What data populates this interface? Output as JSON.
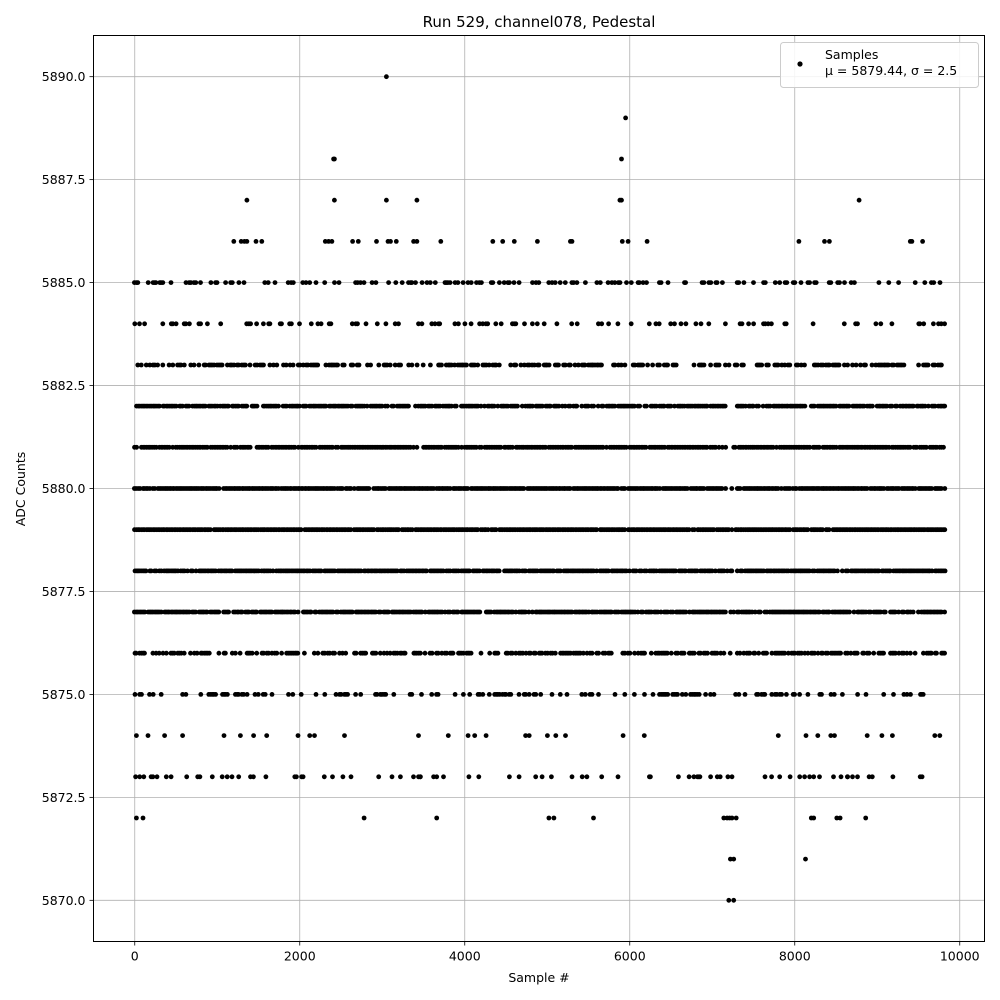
{
  "chart_data": {
    "type": "scatter",
    "title": "Run 529, channel078, Pedestal",
    "xlabel": "Sample #",
    "ylabel": "ADC Counts",
    "xlim": [
      -500,
      10300
    ],
    "ylim": [
      5869.0,
      5891.0
    ],
    "xticks": [
      0,
      2000,
      4000,
      6000,
      8000,
      10000
    ],
    "xtick_labels": [
      "0",
      "2000",
      "4000",
      "6000",
      "8000",
      "10000"
    ],
    "yticks": [
      5870.0,
      5872.5,
      5875.0,
      5877.5,
      5880.0,
      5882.5,
      5885.0,
      5887.5,
      5890.0
    ],
    "ytick_labels": [
      "5870.0",
      "5872.5",
      "5875.0",
      "5877.5",
      "5880.0",
      "5882.5",
      "5885.0",
      "5887.5",
      "5890.0"
    ],
    "grid": true,
    "legend_position": "top-right",
    "series": [
      {
        "name": "Samples",
        "stats_label": "μ = 5879.44, σ = 2.5",
        "color": "#000000",
        "x_start": 0,
        "x_end": 9820,
        "x_step": 20,
        "gaps": [
          {
            "from": 7160,
            "to": 7300,
            "value": 5873
          },
          {
            "from": 7160,
            "to": 7300,
            "value": 5872
          }
        ],
        "levels": [
          {
            "value": 5879,
            "density": 0.95
          },
          {
            "value": 5880,
            "density": 0.92
          },
          {
            "value": 5881,
            "density": 0.9
          },
          {
            "value": 5878,
            "density": 0.88
          },
          {
            "value": 5882,
            "density": 0.8
          },
          {
            "value": 5877,
            "density": 0.82
          },
          {
            "value": 5876,
            "density": 0.55
          },
          {
            "value": 5883,
            "density": 0.5
          },
          {
            "value": 5875,
            "density": 0.28
          },
          {
            "value": 5884,
            "density": 0.22
          },
          {
            "value": 5885,
            "density": 0.24
          },
          {
            "value": 5874,
            "density": 0.09
          },
          {
            "value": 5873,
            "density": 0.06
          }
        ],
        "outliers": [
          [
            3050,
            5890
          ],
          [
            5950,
            5889
          ],
          [
            2410,
            5888
          ],
          [
            2420,
            5888
          ],
          [
            5900,
            5888
          ],
          [
            1360,
            5887
          ],
          [
            2420,
            5887
          ],
          [
            3050,
            5887
          ],
          [
            3420,
            5887
          ],
          [
            5880,
            5887
          ],
          [
            5900,
            5887
          ],
          [
            8780,
            5887
          ],
          [
            1200,
            5886
          ],
          [
            1290,
            5886
          ],
          [
            1330,
            5886
          ],
          [
            1360,
            5886
          ],
          [
            1470,
            5886
          ],
          [
            1540,
            5886
          ],
          [
            2310,
            5886
          ],
          [
            2350,
            5886
          ],
          [
            2390,
            5886
          ],
          [
            2640,
            5886
          ],
          [
            2710,
            5886
          ],
          [
            2930,
            5886
          ],
          [
            3070,
            5886
          ],
          [
            3100,
            5886
          ],
          [
            3170,
            5886
          ],
          [
            3380,
            5886
          ],
          [
            3420,
            5886
          ],
          [
            3710,
            5886
          ],
          [
            4340,
            5886
          ],
          [
            4460,
            5886
          ],
          [
            4600,
            5886
          ],
          [
            4880,
            5886
          ],
          [
            5280,
            5886
          ],
          [
            5300,
            5886
          ],
          [
            5910,
            5886
          ],
          [
            5980,
            5886
          ],
          [
            6210,
            5886
          ],
          [
            8050,
            5886
          ],
          [
            8360,
            5886
          ],
          [
            8420,
            5886
          ],
          [
            9400,
            5886
          ],
          [
            9420,
            5886
          ],
          [
            9550,
            5886
          ],
          [
            20,
            5872
          ],
          [
            100,
            5872
          ],
          [
            2780,
            5872
          ],
          [
            3660,
            5872
          ],
          [
            5020,
            5872
          ],
          [
            5080,
            5872
          ],
          [
            5560,
            5872
          ],
          [
            7140,
            5872
          ],
          [
            7180,
            5872
          ],
          [
            7210,
            5872
          ],
          [
            7240,
            5872
          ],
          [
            7290,
            5872
          ],
          [
            8200,
            5872
          ],
          [
            8230,
            5872
          ],
          [
            8510,
            5872
          ],
          [
            8550,
            5872
          ],
          [
            8860,
            5872
          ],
          [
            7220,
            5871
          ],
          [
            7260,
            5871
          ],
          [
            8130,
            5871
          ],
          [
            7200,
            5870
          ],
          [
            7260,
            5870
          ],
          [
            10,
            5873
          ],
          [
            60,
            5873
          ],
          [
            110,
            5873
          ],
          [
            220,
            5873
          ],
          [
            270,
            5873
          ],
          [
            440,
            5873
          ],
          [
            630,
            5873
          ],
          [
            790,
            5873
          ],
          [
            940,
            5873
          ],
          [
            1060,
            5873
          ],
          [
            1120,
            5873
          ],
          [
            1260,
            5873
          ],
          [
            1590,
            5873
          ],
          [
            1940,
            5873
          ],
          [
            1960,
            5873
          ],
          [
            3220,
            5873
          ],
          [
            3460,
            5873
          ],
          [
            3660,
            5873
          ],
          [
            4050,
            5873
          ],
          [
            4170,
            5873
          ],
          [
            4860,
            5873
          ],
          [
            5050,
            5873
          ],
          [
            5300,
            5873
          ],
          [
            5480,
            5873
          ],
          [
            5660,
            5873
          ],
          [
            6250,
            5873
          ],
          [
            6590,
            5873
          ],
          [
            6820,
            5873
          ],
          [
            6850,
            5873
          ],
          [
            6980,
            5873
          ],
          [
            7190,
            5873
          ],
          [
            7240,
            5873
          ],
          [
            7640,
            5873
          ],
          [
            7720,
            5873
          ],
          [
            8060,
            5873
          ],
          [
            8120,
            5873
          ],
          [
            8180,
            5873
          ],
          [
            8230,
            5873
          ],
          [
            8300,
            5873
          ],
          [
            8470,
            5873
          ],
          [
            8560,
            5873
          ],
          [
            8640,
            5873
          ],
          [
            8700,
            5873
          ],
          [
            8760,
            5873
          ],
          [
            8940,
            5873
          ],
          [
            9190,
            5873
          ]
        ]
      }
    ]
  }
}
